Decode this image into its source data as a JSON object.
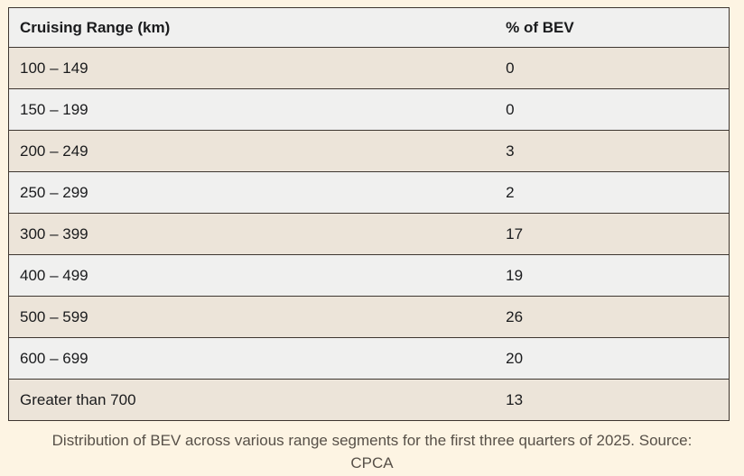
{
  "colors": {
    "page_background": "#fdf4e3",
    "row_beige": "#ece4d9",
    "row_gray": "#f0f0ef",
    "header_gray": "#f0f0ef",
    "border": "#3e3630",
    "text": "#1a1b1d",
    "caption_text": "#575048"
  },
  "chart_data": {
    "type": "table",
    "columns": [
      "Cruising Range (km)",
      "% of BEV"
    ],
    "rows": [
      {
        "range": "100 – 149",
        "pct": "0"
      },
      {
        "range": "150 – 199",
        "pct": "0"
      },
      {
        "range": "200 – 249",
        "pct": "3"
      },
      {
        "range": "250 – 299",
        "pct": "2"
      },
      {
        "range": "300 – 399",
        "pct": "17"
      },
      {
        "range": "400 – 499",
        "pct": "19"
      },
      {
        "range": "500 – 599",
        "pct": "26"
      },
      {
        "range": "600 – 699",
        "pct": "20"
      },
      {
        "range": "Greater than 700",
        "pct": "13"
      }
    ],
    "caption": "Distribution of BEV across various range segments for the first three quarters of 2025. Source: CPCA"
  },
  "caption": {
    "line1": "Distribution of BEV across various range segments for the first three quarters of 2025. Source:",
    "line2": "CPCA"
  }
}
